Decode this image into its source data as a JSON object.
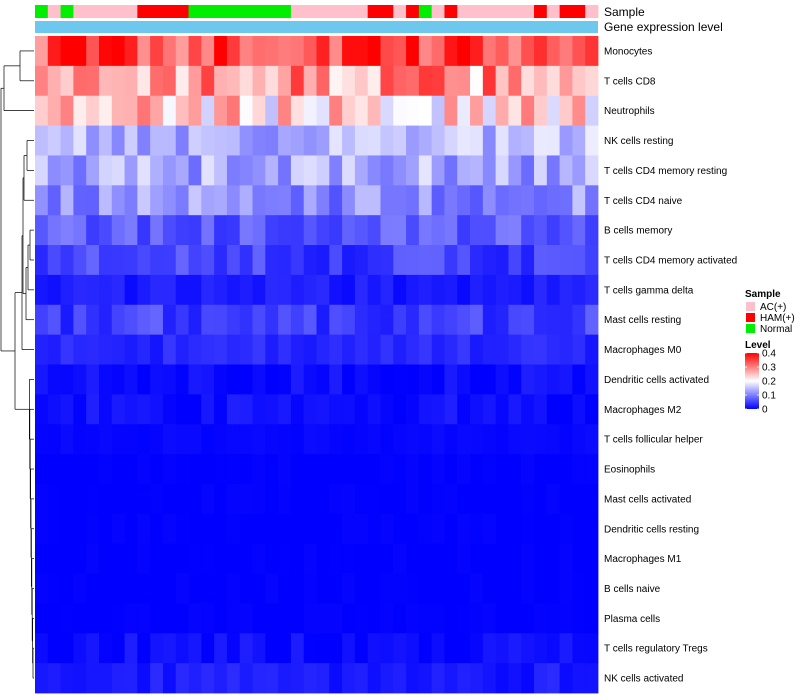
{
  "chart_data": {
    "type": "heatmap",
    "annotation_tracks": [
      "Sample",
      "Gene expression level"
    ],
    "sample_groups": [
      "Normal",
      "AC(+)",
      "Normal",
      "AC(+)",
      "AC(+)",
      "AC(+)",
      "AC(+)",
      "AC(+)",
      "HAM(+)",
      "HAM(+)",
      "HAM(+)",
      "HAM(+)",
      "Normal",
      "Normal",
      "Normal",
      "Normal",
      "Normal",
      "Normal",
      "Normal",
      "Normal",
      "AC(+)",
      "AC(+)",
      "AC(+)",
      "AC(+)",
      "AC(+)",
      "AC(+)",
      "HAM(+)",
      "HAM(+)",
      "AC(+)",
      "HAM(+)",
      "Normal",
      "AC(+)",
      "HAM(+)",
      "AC(+)",
      "AC(+)",
      "AC(+)",
      "AC(+)",
      "AC(+)",
      "AC(+)",
      "HAM(+)",
      "AC(+)",
      "HAM(+)",
      "HAM(+)",
      "AC(+)"
    ],
    "rows": [
      "Monocytes",
      "T cells CD8",
      "Neutrophils",
      "NK cells resting",
      "T cells CD4 memory resting",
      "T cells CD4 naive",
      "B cells memory",
      "T cells CD4 memory activated",
      "T cells gamma delta",
      "Mast cells resting",
      "Macrophages M0",
      "Dendritic cells activated",
      "Macrophages M2",
      "T cells follicular helper",
      "Eosinophils",
      "Mast cells activated",
      "Dendritic cells resting",
      "Macrophages M1",
      "B cells naive",
      "Plasma cells",
      "T cells regulatory  Tregs",
      "NK cells activated"
    ],
    "row_means": [
      0.35,
      0.28,
      0.23,
      0.14,
      0.13,
      0.11,
      0.07,
      0.05,
      0.02,
      0.05,
      0.03,
      0.01,
      0.01,
      0.005,
      0.0,
      0.0,
      0.0,
      0.0,
      0.0,
      0.0,
      0.01,
      0.02
    ],
    "n_columns": 44,
    "legend": {
      "sample": {
        "title": "Sample",
        "entries": [
          {
            "label": "AC(+)",
            "color": "#FFC0CB"
          },
          {
            "label": "HAM(+)",
            "color": "#FF0000"
          },
          {
            "label": "Normal",
            "color": "#00EE00"
          }
        ]
      },
      "level": {
        "title": "Level",
        "ticks": [
          0.4,
          0.3,
          0.2,
          0.1,
          0
        ],
        "tick_labels": [
          "0.4",
          "0.3",
          "0.2",
          "0.1",
          "0"
        ],
        "range": [
          0,
          0.4
        ]
      }
    },
    "colors": {
      "low": "#0000FF",
      "mid": "#FFFFFF",
      "high": "#FF0000",
      "expression_bar": "#6EC8EE"
    }
  }
}
